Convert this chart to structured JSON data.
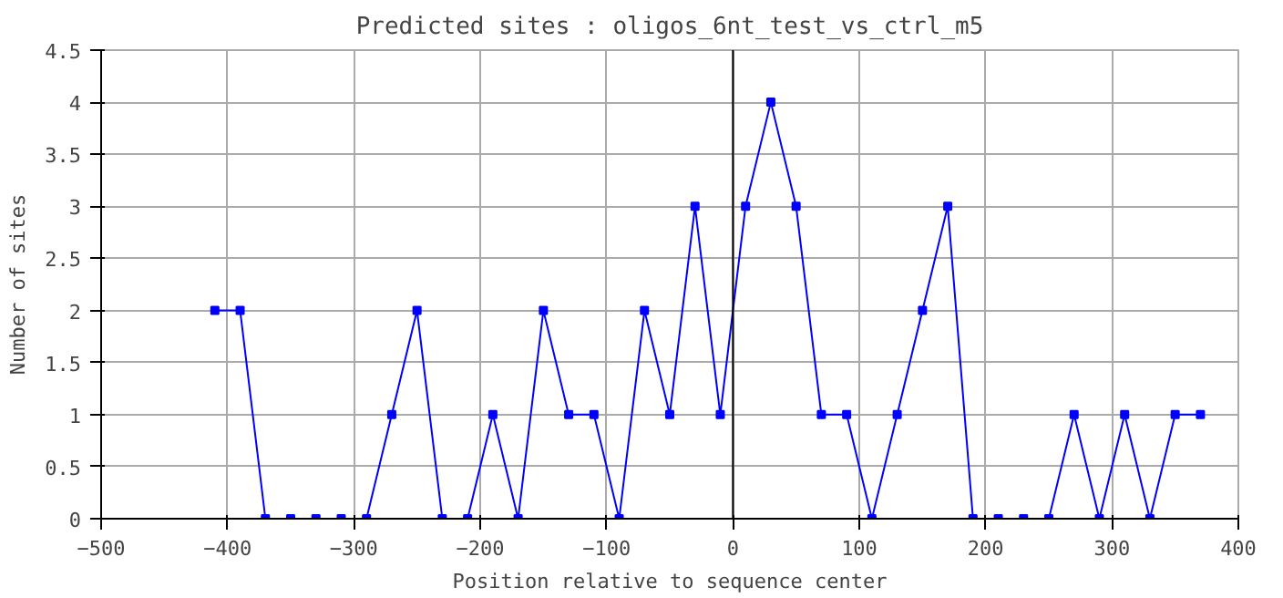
{
  "chart_data": {
    "type": "line",
    "title": "Predicted sites : oligos_6nt_test_vs_ctrl_m5",
    "xlabel": "Position relative to sequence center",
    "ylabel": "Number of sites",
    "x": [
      -410,
      -390,
      -370,
      -350,
      -330,
      -310,
      -290,
      -270,
      -250,
      -230,
      -210,
      -190,
      -170,
      -150,
      -130,
      -110,
      -90,
      -70,
      -50,
      -30,
      -10,
      10,
      30,
      50,
      70,
      90,
      110,
      130,
      150,
      170,
      190,
      210,
      230,
      250,
      270,
      290,
      310,
      330,
      350,
      370
    ],
    "series": [
      {
        "color": "#0000ff",
        "values": [
          2,
          2,
          0,
          0,
          0,
          0,
          0,
          1,
          2,
          0,
          0,
          1,
          0,
          2,
          1,
          1,
          0,
          2,
          1,
          3,
          1,
          3,
          4,
          3,
          1,
          1,
          0,
          1,
          2,
          3,
          0,
          0,
          0,
          0,
          1,
          0,
          1,
          0,
          1,
          1
        ]
      }
    ],
    "xlim": [
      -500,
      400
    ],
    "xticks": [
      -500,
      -400,
      -300,
      -200,
      -100,
      0,
      100,
      200,
      300,
      400
    ],
    "ylim": [
      0,
      4.5
    ],
    "yticks": [
      0,
      0.5,
      1,
      1.5,
      2,
      2.5,
      3,
      3.5,
      4,
      4.5
    ],
    "ref_lines": [
      {
        "axis": "x",
        "value": 0,
        "color": "#000000"
      }
    ],
    "grid": true,
    "marker": "square",
    "line_style": "solid"
  }
}
